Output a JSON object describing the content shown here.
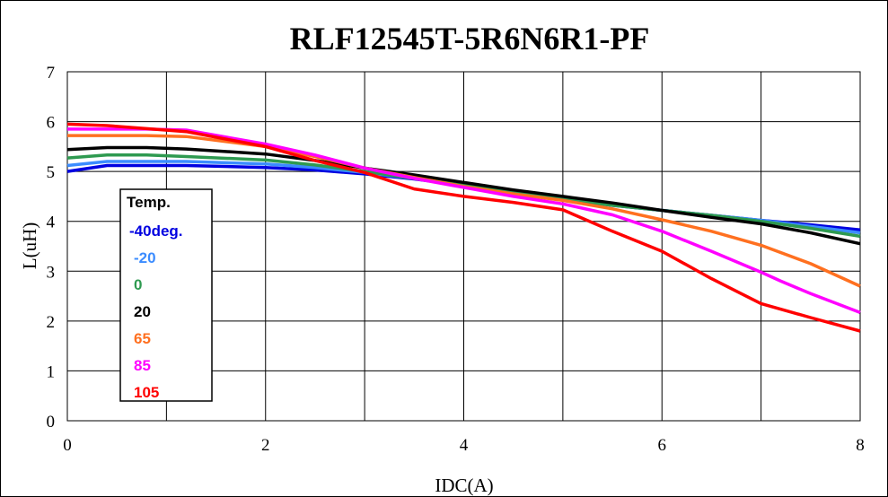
{
  "chart_data": {
    "type": "line",
    "title": "RLF12545T-5R6N6R1-PF",
    "xlabel": "IDC(A)",
    "ylabel": "L(uH)",
    "xlim": [
      0,
      8
    ],
    "ylim": [
      0,
      7
    ],
    "x_ticks": [
      "0",
      "2",
      "4",
      "6",
      "8"
    ],
    "y_ticks": [
      "0",
      "1",
      "2",
      "3",
      "4",
      "5",
      "6",
      "7"
    ],
    "grid": true,
    "legend": {
      "title": "Temp.",
      "placement": "left",
      "entries": [
        "-40deg.",
        "-20",
        "0",
        "20",
        "65",
        "85",
        "105"
      ]
    },
    "series": [
      {
        "name": "-40deg.",
        "color": "#0000e0",
        "x": [
          0,
          0.4,
          0.8,
          1.2,
          2,
          2.5,
          3,
          3.5,
          4,
          4.5,
          5,
          5.5,
          6,
          6.5,
          7,
          7.5,
          8
        ],
        "y": [
          5.0,
          5.12,
          5.12,
          5.12,
          5.08,
          5.03,
          4.95,
          4.85,
          4.72,
          4.58,
          4.45,
          4.32,
          4.22,
          4.12,
          4.02,
          3.93,
          3.83
        ]
      },
      {
        "name": "-20",
        "color": "#3b8cff",
        "x": [
          0,
          0.4,
          0.8,
          1.2,
          2,
          2.5,
          3,
          3.5,
          4,
          4.5,
          5,
          5.5,
          6,
          6.5,
          7,
          7.5,
          8
        ],
        "y": [
          5.12,
          5.2,
          5.2,
          5.2,
          5.15,
          5.08,
          4.98,
          4.86,
          4.73,
          4.6,
          4.46,
          4.33,
          4.22,
          4.12,
          4.02,
          3.9,
          3.77
        ]
      },
      {
        "name": "0",
        "color": "#2e9a50",
        "x": [
          0,
          0.4,
          0.8,
          1.2,
          2,
          2.5,
          3,
          3.5,
          4,
          4.5,
          5,
          5.5,
          6,
          6.5,
          7,
          7.5,
          8
        ],
        "y": [
          5.27,
          5.33,
          5.33,
          5.3,
          5.23,
          5.13,
          5.0,
          4.86,
          4.72,
          4.58,
          4.44,
          4.32,
          4.22,
          4.12,
          4.0,
          3.86,
          3.7
        ]
      },
      {
        "name": "20",
        "color": "#000000",
        "x": [
          0,
          0.4,
          0.8,
          1.2,
          2,
          2.5,
          3,
          3.5,
          4,
          4.5,
          5,
          5.5,
          6,
          6.5,
          7,
          7.5,
          8
        ],
        "y": [
          5.44,
          5.48,
          5.48,
          5.45,
          5.35,
          5.22,
          5.07,
          4.93,
          4.78,
          4.63,
          4.5,
          4.37,
          4.22,
          4.08,
          3.95,
          3.77,
          3.55
        ]
      },
      {
        "name": "65",
        "color": "#ff7020",
        "x": [
          0,
          0.4,
          0.8,
          1.2,
          2,
          2.5,
          3,
          3.5,
          4,
          4.5,
          5,
          5.5,
          6,
          6.5,
          7,
          7.5,
          8
        ],
        "y": [
          5.72,
          5.72,
          5.72,
          5.7,
          5.5,
          5.3,
          5.07,
          4.88,
          4.7,
          4.55,
          4.42,
          4.25,
          4.03,
          3.8,
          3.52,
          3.15,
          2.7
        ]
      },
      {
        "name": "85",
        "color": "#ff00ff",
        "x": [
          0,
          0.4,
          0.8,
          1.2,
          2,
          2.5,
          3,
          3.5,
          4,
          4.5,
          5,
          5.5,
          6,
          6.5,
          7,
          7.2,
          7.5,
          8
        ],
        "y": [
          5.85,
          5.85,
          5.85,
          5.83,
          5.55,
          5.33,
          5.07,
          4.86,
          4.68,
          4.5,
          4.35,
          4.13,
          3.8,
          3.4,
          2.98,
          2.8,
          2.55,
          2.17
        ]
      },
      {
        "name": "105",
        "color": "#ff0000",
        "x": [
          0,
          0.4,
          0.8,
          1.2,
          2,
          2.5,
          3,
          3.5,
          4,
          4.5,
          5,
          5.5,
          6,
          6.5,
          6.8,
          7,
          7.5,
          8
        ],
        "y": [
          5.95,
          5.92,
          5.86,
          5.8,
          5.5,
          5.22,
          4.98,
          4.65,
          4.5,
          4.38,
          4.23,
          3.8,
          3.4,
          2.85,
          2.55,
          2.35,
          2.07,
          1.8
        ]
      }
    ]
  }
}
